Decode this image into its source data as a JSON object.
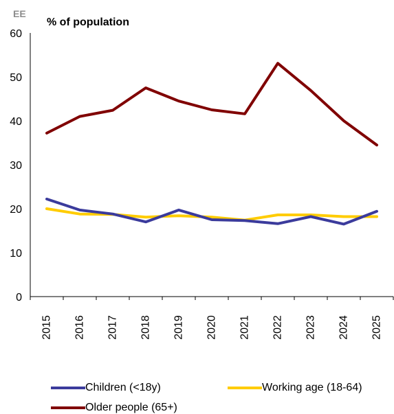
{
  "chart_data": {
    "type": "line",
    "country_code": "EE",
    "ylabel": "% of population",
    "xlabel": "",
    "title": "",
    "x": [
      "2015",
      "2016",
      "2017",
      "2018",
      "2019",
      "2020",
      "2021",
      "2022",
      "2023",
      "2024",
      "2025"
    ],
    "ylim": [
      0,
      60
    ],
    "yticks": [
      0,
      10,
      20,
      30,
      40,
      50,
      60
    ],
    "grid": false,
    "legend_position": "bottom",
    "series": [
      {
        "name": "Children (<18y)",
        "color": "#3b3b9c",
        "values": [
          22.2,
          19.7,
          18.8,
          17.0,
          19.7,
          17.5,
          17.3,
          16.6,
          18.2,
          16.5,
          19.4
        ]
      },
      {
        "name": "Working age (18-64)",
        "color": "#ffcc00",
        "values": [
          20.0,
          18.8,
          18.7,
          18.1,
          18.4,
          18.1,
          17.4,
          18.6,
          18.6,
          18.2,
          18.2
        ]
      },
      {
        "name": "Older people (65+)",
        "color": "#800000",
        "values": [
          37.2,
          41.0,
          42.4,
          47.5,
          44.5,
          42.5,
          41.6,
          53.1,
          46.9,
          40.0,
          34.5
        ]
      }
    ]
  }
}
